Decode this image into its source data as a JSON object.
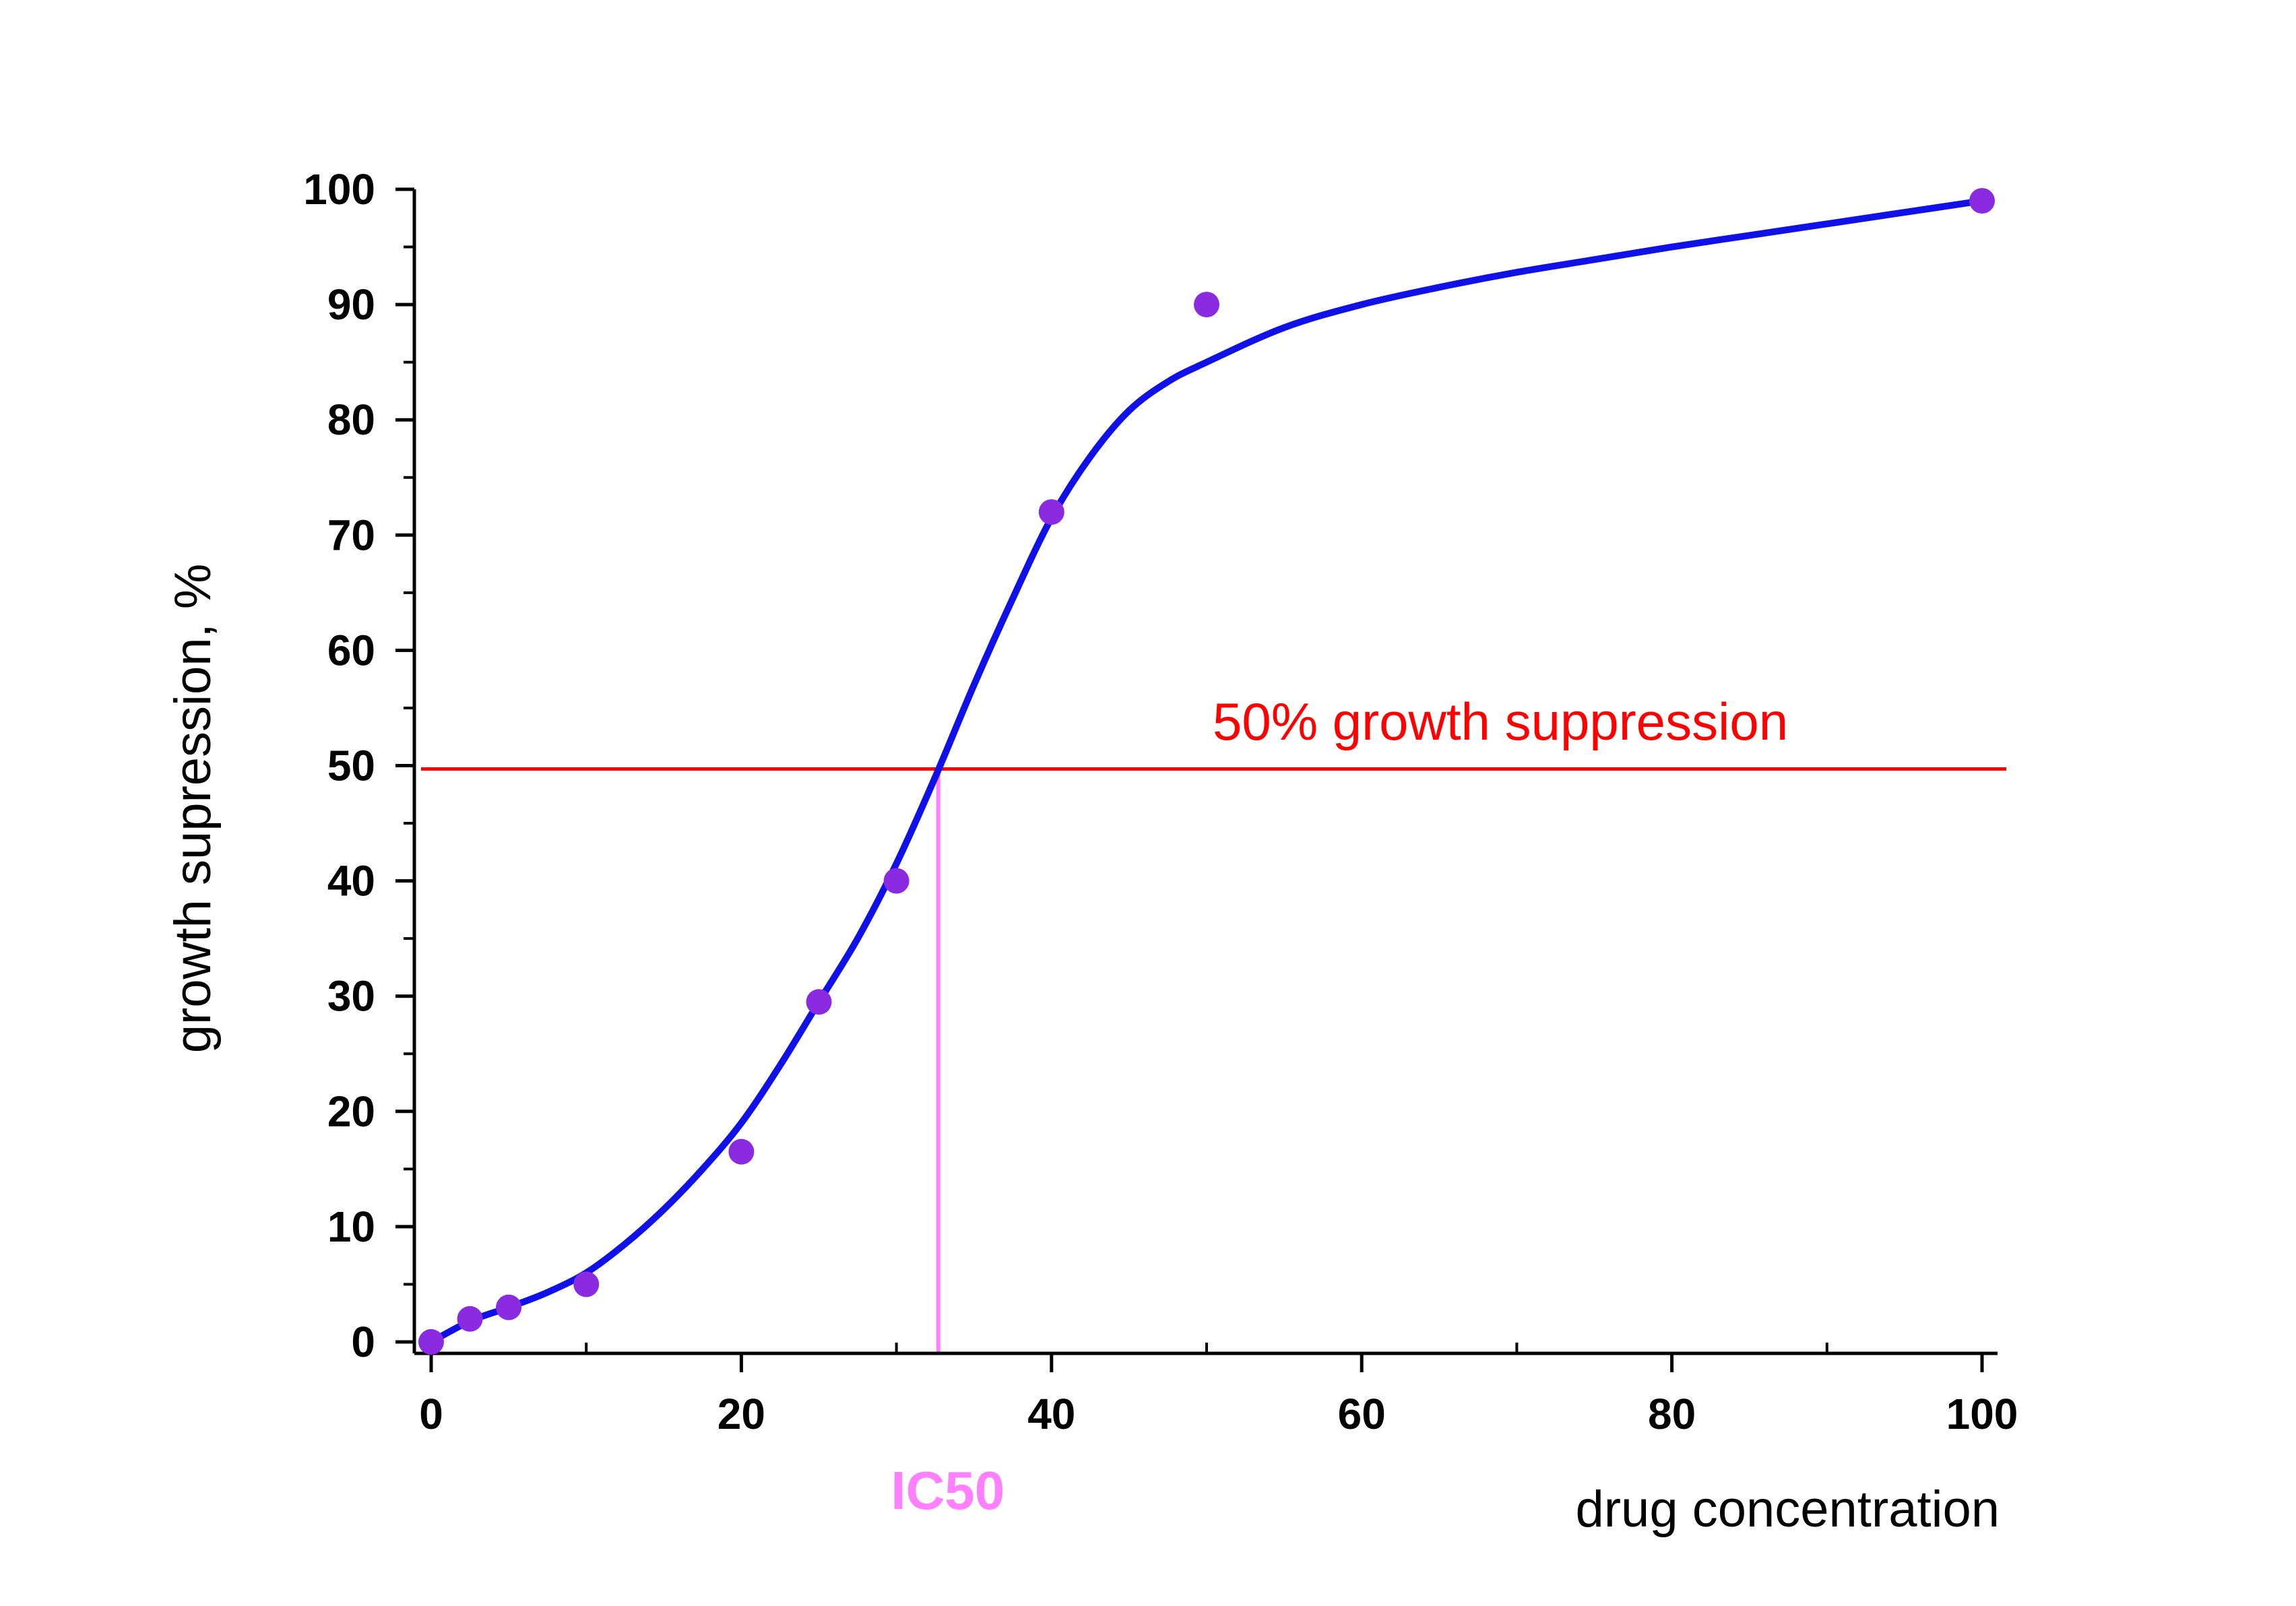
{
  "chart_data": {
    "type": "scatter",
    "xlabel": "drug concentration",
    "ylabel": "growth supression, %",
    "xlim": [
      -2,
      101
    ],
    "ylim": [
      -1,
      100
    ],
    "x_ticks": [
      0,
      20,
      40,
      60,
      80,
      100
    ],
    "y_ticks": [
      0,
      10,
      20,
      30,
      40,
      50,
      60,
      70,
      80,
      90,
      100
    ],
    "x_tick_labels": [
      "0",
      "20",
      "40",
      "60",
      "80",
      "100"
    ],
    "y_tick_labels": [
      "0",
      "10",
      "20",
      "30",
      "40",
      "50",
      "60",
      "70",
      "80",
      "90",
      "100"
    ],
    "grid": false,
    "series": [
      {
        "kind": "points",
        "color": "#8a2be2",
        "x": [
          0,
          2.5,
          5,
          10,
          20,
          25,
          30,
          40,
          50,
          100
        ],
        "y": [
          0,
          2,
          3,
          5,
          16.5,
          29.5,
          40,
          72,
          90,
          99
        ]
      },
      {
        "kind": "fit",
        "color": "#1010e8",
        "x": [
          0,
          2.5,
          5,
          7.5,
          10,
          12.5,
          15,
          17.5,
          20,
          22.5,
          25,
          27.5,
          30,
          32.5,
          35,
          37.5,
          40,
          42.5,
          45,
          47.5,
          50,
          55,
          60,
          65,
          70,
          75,
          80,
          85,
          90,
          95,
          100
        ],
        "y": [
          0,
          1.8,
          3,
          4.3,
          6,
          8.5,
          11.5,
          15,
          19,
          24,
          29.5,
          35,
          41.5,
          49,
          57,
          64.5,
          71.5,
          76.8,
          80.8,
          83.3,
          85,
          88,
          90,
          91.5,
          92.8,
          93.9,
          95,
          96,
          97,
          98,
          99
        ]
      }
    ],
    "reference_line": {
      "label": "50% growth suppression",
      "y": 50,
      "color": "#ff0000"
    },
    "ic50_marker": {
      "label": "IC50",
      "x": 32.7,
      "color": "#ff80ff"
    }
  }
}
